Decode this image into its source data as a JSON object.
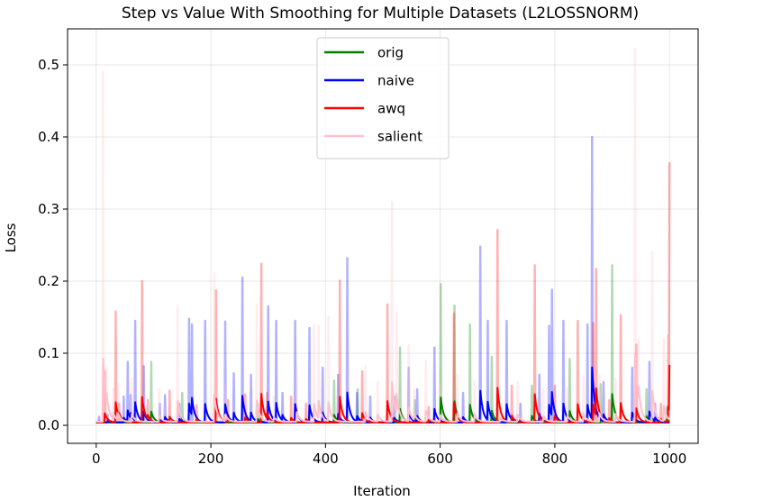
{
  "chart_data": {
    "type": "line",
    "title": "Step vs Value With Smoothing for Multiple Datasets (L2LOSSNORM)",
    "xlabel": "Iteration",
    "ylabel": "Loss",
    "xlim": [
      -50,
      1050
    ],
    "ylim": [
      -0.025,
      0.55
    ],
    "xticks": [
      0,
      200,
      400,
      600,
      800,
      1000
    ],
    "xtick_labels": [
      "0",
      "200",
      "400",
      "600",
      "800",
      "1000"
    ],
    "yticks": [
      0.0,
      0.1,
      0.2,
      0.3,
      0.4,
      0.5
    ],
    "ytick_labels": [
      "0.0",
      "0.1",
      "0.2",
      "0.3",
      "0.4",
      "0.5"
    ],
    "grid": true,
    "legend_position": "upper center",
    "series": [
      {
        "name": "orig",
        "color": "#008000",
        "raw_baseline": 0.004,
        "smooth_decay": 0.82,
        "spikes": [
          [
            96,
            0.088
          ],
          [
            150,
            0.045
          ],
          [
            282,
            0.03
          ],
          [
            415,
            0.062
          ],
          [
            456,
            0.05
          ],
          [
            530,
            0.108
          ],
          [
            556,
            0.035
          ],
          [
            601,
            0.196
          ],
          [
            625,
            0.166
          ],
          [
            652,
            0.14
          ],
          [
            690,
            0.095
          ],
          [
            760,
            0.055
          ],
          [
            826,
            0.092
          ],
          [
            880,
            0.057
          ],
          [
            900,
            0.222
          ],
          [
            960,
            0.05
          ],
          [
            995,
            0.025
          ]
        ]
      },
      {
        "name": "naive",
        "color": "#0000ff",
        "raw_baseline": 0.004,
        "smooth_decay": 0.82,
        "spikes": [
          [
            5,
            0.012
          ],
          [
            20,
            0.015
          ],
          [
            48,
            0.04
          ],
          [
            55,
            0.088
          ],
          [
            60,
            0.042
          ],
          [
            68,
            0.145
          ],
          [
            83,
            0.082
          ],
          [
            111,
            0.03
          ],
          [
            120,
            0.042
          ],
          [
            145,
            0.03
          ],
          [
            162,
            0.148
          ],
          [
            167,
            0.14
          ],
          [
            190,
            0.145
          ],
          [
            225,
            0.144
          ],
          [
            240,
            0.072
          ],
          [
            255,
            0.205
          ],
          [
            270,
            0.07
          ],
          [
            300,
            0.165
          ],
          [
            314,
            0.145
          ],
          [
            325,
            0.045
          ],
          [
            347,
            0.145
          ],
          [
            372,
            0.135
          ],
          [
            395,
            0.08
          ],
          [
            422,
            0.07
          ],
          [
            438,
            0.232
          ],
          [
            455,
            0.045
          ],
          [
            478,
            0.04
          ],
          [
            520,
            0.04
          ],
          [
            545,
            0.08
          ],
          [
            560,
            0.05
          ],
          [
            590,
            0.108
          ],
          [
            640,
            0.045
          ],
          [
            670,
            0.248
          ],
          [
            683,
            0.145
          ],
          [
            716,
            0.145
          ],
          [
            740,
            0.03
          ],
          [
            773,
            0.07
          ],
          [
            790,
            0.138
          ],
          [
            795,
            0.188
          ],
          [
            815,
            0.145
          ],
          [
            857,
            0.14
          ],
          [
            865,
            0.4
          ],
          [
            885,
            0.06
          ],
          [
            935,
            0.08
          ],
          [
            965,
            0.088
          ],
          [
            975,
            0.03
          ]
        ]
      },
      {
        "name": "awq",
        "color": "#ff0000",
        "raw_baseline": 0.004,
        "smooth_decay": 0.82,
        "spikes": [
          [
            15,
            0.075
          ],
          [
            34,
            0.158
          ],
          [
            40,
            0.03
          ],
          [
            80,
            0.2
          ],
          [
            90,
            0.035
          ],
          [
            128,
            0.048
          ],
          [
            175,
            0.028
          ],
          [
            209,
            0.187
          ],
          [
            230,
            0.035
          ],
          [
            260,
            0.043
          ],
          [
            288,
            0.224
          ],
          [
            298,
            0.045
          ],
          [
            340,
            0.04
          ],
          [
            366,
            0.03
          ],
          [
            425,
            0.201
          ],
          [
            464,
            0.075
          ],
          [
            508,
            0.168
          ],
          [
            580,
            0.025
          ],
          [
            624,
            0.155
          ],
          [
            700,
            0.271
          ],
          [
            725,
            0.055
          ],
          [
            765,
            0.222
          ],
          [
            800,
            0.055
          ],
          [
            840,
            0.145
          ],
          [
            867,
            0.142
          ],
          [
            872,
            0.217
          ],
          [
            895,
            0.035
          ],
          [
            915,
            0.153
          ],
          [
            942,
            0.112
          ],
          [
            985,
            0.03
          ],
          [
            998,
            0.125
          ],
          [
            1001,
            0.365
          ]
        ]
      },
      {
        "name": "salient",
        "color": "#ffc0cb",
        "raw_baseline": 0.005,
        "smooth_decay": 0.82,
        "spikes": [
          [
            12,
            0.49
          ],
          [
            18,
            0.08
          ],
          [
            30,
            0.05
          ],
          [
            38,
            0.058
          ],
          [
            62,
            0.065
          ],
          [
            110,
            0.05
          ],
          [
            142,
            0.165
          ],
          [
            206,
            0.21
          ],
          [
            225,
            0.055
          ],
          [
            280,
            0.168
          ],
          [
            310,
            0.04
          ],
          [
            350,
            0.08
          ],
          [
            380,
            0.14
          ],
          [
            388,
            0.138
          ],
          [
            405,
            0.15
          ],
          [
            470,
            0.082
          ],
          [
            491,
            0.06
          ],
          [
            516,
            0.31
          ],
          [
            524,
            0.156
          ],
          [
            545,
            0.112
          ],
          [
            555,
            0.05
          ],
          [
            575,
            0.09
          ],
          [
            600,
            0.055
          ],
          [
            630,
            0.07
          ],
          [
            660,
            0.062
          ],
          [
            705,
            0.038
          ],
          [
            735,
            0.06
          ],
          [
            780,
            0.05
          ],
          [
            822,
            0.052
          ],
          [
            850,
            0.068
          ],
          [
            878,
            0.07
          ],
          [
            906,
            0.065
          ],
          [
            940,
            0.522
          ],
          [
            946,
            0.12
          ],
          [
            970,
            0.24
          ],
          [
            990,
            0.12
          ]
        ]
      }
    ]
  }
}
